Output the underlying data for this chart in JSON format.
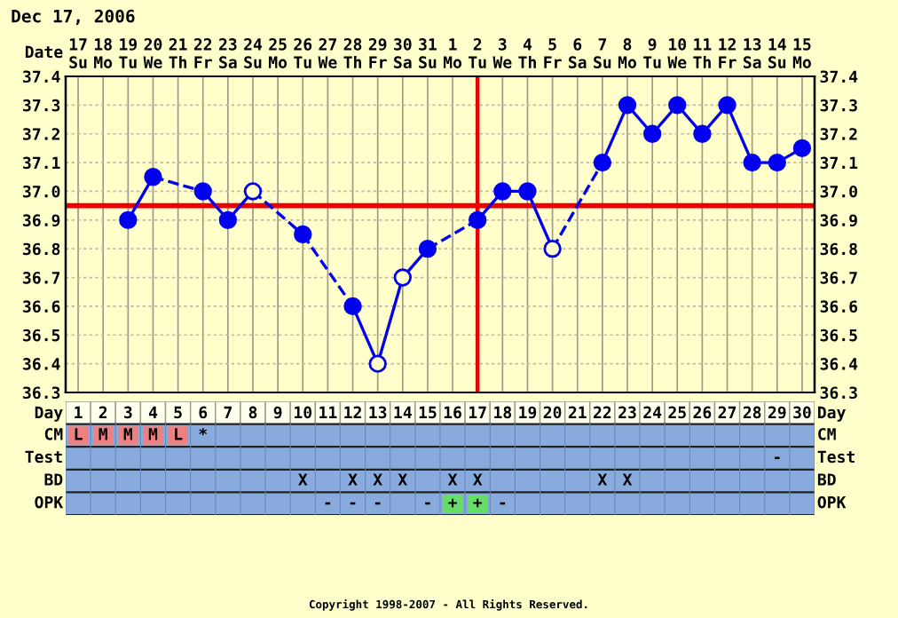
{
  "chart_data": [
    {
      "type": "line",
      "title": "Dec 17, 2006",
      "xlabel": "Day",
      "x2label": "Date",
      "categories": [
        "1",
        "2",
        "3",
        "4",
        "5",
        "6",
        "7",
        "8",
        "9",
        "10",
        "11",
        "12",
        "13",
        "14",
        "15",
        "16",
        "17",
        "18",
        "19",
        "20",
        "21",
        "22",
        "23",
        "24",
        "25",
        "26",
        "27",
        "28",
        "29",
        "30"
      ],
      "x2lim": [
        "2006-12-16T12:00",
        "2007-01-15T12:00"
      ],
      "x2ticks": [
        {
          "value": "2006-12-17",
          "label": "17\nSu"
        },
        {
          "value": "2006-12-18",
          "label": "18\nMo"
        },
        {
          "value": "2006-12-19",
          "label": "19\nTu"
        },
        {
          "value": "2006-12-20",
          "label": "20\nWe"
        },
        {
          "value": "2006-12-21",
          "label": "21\nTh"
        },
        {
          "value": "2006-12-22",
          "label": "22\nFr"
        },
        {
          "value": "2006-12-23",
          "label": "23\nSa"
        },
        {
          "value": "2006-12-24",
          "label": "24\nSu"
        },
        {
          "value": "2006-12-25",
          "label": "25\nMo"
        },
        {
          "value": "2006-12-26",
          "label": "26\nTu"
        },
        {
          "value": "2006-12-27",
          "label": "27\nWe"
        },
        {
          "value": "2006-12-28",
          "label": "28\nTh"
        },
        {
          "value": "2006-12-29",
          "label": "29\nFr"
        },
        {
          "value": "2006-12-30",
          "label": "30\nSa"
        },
        {
          "value": "2006-12-31",
          "label": "31\nSu"
        },
        {
          "value": "2007-01-01",
          "label": "1\nMo"
        },
        {
          "value": "2007-01-02",
          "label": "2\nTu"
        },
        {
          "value": "2007-01-03",
          "label": "3\nWe"
        },
        {
          "value": "2007-01-04",
          "label": "4\nTh"
        },
        {
          "value": "2007-01-05",
          "label": "5\nFr"
        },
        {
          "value": "2007-01-06",
          "label": "6\nSa"
        },
        {
          "value": "2007-01-07",
          "label": "7\nSu"
        },
        {
          "value": "2007-01-08",
          "label": "8\nMo"
        },
        {
          "value": "2007-01-09",
          "label": "9\nTu"
        },
        {
          "value": "2007-01-10",
          "label": "10\nWe"
        },
        {
          "value": "2007-01-11",
          "label": "11\nTh"
        },
        {
          "value": "2007-01-12",
          "label": "12\nFr"
        },
        {
          "value": "2007-01-13",
          "label": "13\nSa"
        },
        {
          "value": "2007-01-14",
          "label": "14\nSu"
        },
        {
          "value": "2007-01-15",
          "label": "15\nMo"
        }
      ],
      "series": [
        {
          "type": "line",
          "color": "#0000ee",
          "line_style": "solid",
          "values": [
            null,
            null,
            36.9,
            37.05,
            null,
            37.0,
            36.9,
            37.0,
            null,
            36.85,
            null,
            36.6,
            36.4,
            36.7,
            36.8,
            null,
            36.9,
            37.0,
            37.0,
            36.8,
            null,
            37.1,
            37.3,
            37.2,
            37.3,
            37.2,
            37.3,
            37.1,
            37.1,
            37.15
          ]
        },
        {
          "type": "scatter",
          "color": "#0000ee",
          "marker": "circle",
          "values": [
            null,
            null,
            36.9,
            37.05,
            null,
            37.0,
            36.9,
            null,
            null,
            36.85,
            null,
            36.6,
            null,
            null,
            36.8,
            null,
            36.9,
            37.0,
            37.0,
            null,
            null,
            37.1,
            37.3,
            37.2,
            37.3,
            37.2,
            37.3,
            37.1,
            37.1,
            37.15
          ]
        },
        {
          "type": "scatter",
          "color": "#0000ee",
          "marker": "circle",
          "colors": [
            null,
            null,
            null,
            null,
            null,
            null,
            null,
            "#ffffcc",
            null,
            null,
            null,
            null,
            "#ffffcc",
            "#ffffcc",
            null,
            null,
            null,
            null,
            null,
            "#ffffcc",
            null,
            null,
            null,
            null,
            null,
            null,
            null,
            null,
            null,
            null
          ],
          "values": [
            null,
            null,
            null,
            null,
            null,
            null,
            null,
            37.0,
            null,
            null,
            null,
            null,
            36.4,
            36.7,
            null,
            null,
            null,
            null,
            null,
            36.8,
            null,
            null,
            null,
            null,
            null,
            null,
            null,
            null,
            null,
            null
          ]
        }
      ],
      "ylim": [
        36.3,
        37.4
      ],
      "yticks": [
        {
          "value": 36.3,
          "label": "36.3"
        },
        {
          "value": 36.4,
          "label": "36.4"
        },
        {
          "value": 36.5,
          "label": "36.5"
        },
        {
          "value": 36.6,
          "label": "36.6"
        },
        {
          "value": 36.7,
          "label": "36.7"
        },
        {
          "value": 36.8,
          "label": "36.8"
        },
        {
          "value": 36.9,
          "label": "36.9"
        },
        {
          "value": 37.0,
          "label": "37.0"
        },
        {
          "value": 37.1,
          "label": "37.1"
        },
        {
          "value": 37.2,
          "label": "37.2"
        },
        {
          "value": 37.3,
          "label": "37.3"
        },
        {
          "value": 37.4,
          "label": "37.4"
        }
      ],
      "y2lim": [
        36.3,
        37.4
      ],
      "y2ticks": [
        {
          "value": 36.3,
          "label": "36.3"
        },
        {
          "value": 36.4,
          "label": "36.4"
        },
        {
          "value": 36.5,
          "label": "36.5"
        },
        {
          "value": 36.6,
          "label": "36.6"
        },
        {
          "value": 36.7,
          "label": "36.7"
        },
        {
          "value": 36.8,
          "label": "36.8"
        },
        {
          "value": 36.9,
          "label": "36.9"
        },
        {
          "value": 37.0,
          "label": "37.0"
        },
        {
          "value": 37.1,
          "label": "37.1"
        },
        {
          "value": 37.2,
          "label": "37.2"
        },
        {
          "value": 37.3,
          "label": "37.3"
        },
        {
          "value": 37.4,
          "label": "37.4"
        }
      ],
      "grid": true,
      "ref_lines": [
        {
          "axis": "y",
          "value": 36.95,
          "color": "#ee0000"
        },
        {
          "axis": "x",
          "value": "17",
          "color": "#ee0000"
        }
      ],
      "annotations": [
        "Copyright 1998-2007 - All Rights Reserved."
      ]
    },
    {
      "type": "other",
      "y_categories": [
        "CM",
        "Test",
        "BD",
        "OPK"
      ],
      "y2_categories": [
        "CM",
        "Test",
        "BD",
        "OPK"
      ],
      "cell_labels": [
        [
          "L",
          "M",
          "M",
          "M",
          "L",
          "*",
          null,
          null,
          null,
          null,
          null,
          null,
          null,
          null,
          null,
          null,
          null,
          null,
          null,
          null,
          null,
          null,
          null,
          null,
          null,
          null,
          null,
          null,
          null,
          null
        ],
        [
          null,
          null,
          null,
          null,
          null,
          null,
          null,
          null,
          null,
          null,
          null,
          null,
          null,
          null,
          null,
          null,
          null,
          null,
          null,
          null,
          null,
          null,
          null,
          null,
          null,
          null,
          null,
          null,
          "-",
          null
        ],
        [
          null,
          null,
          null,
          null,
          null,
          null,
          null,
          null,
          null,
          "X",
          null,
          "X",
          "X",
          "X",
          null,
          "X",
          "X",
          null,
          null,
          null,
          null,
          "X",
          "X",
          null,
          null,
          null,
          null,
          null,
          null,
          null
        ],
        [
          null,
          null,
          null,
          null,
          null,
          null,
          null,
          null,
          null,
          null,
          "-",
          "-",
          "-",
          null,
          "-",
          "+",
          "+",
          "-",
          null,
          null,
          null,
          null,
          null,
          null,
          null,
          null,
          null,
          null,
          null,
          null
        ]
      ],
      "colors": [
        [
          "#ee8080",
          "#ee8080",
          "#ee8080",
          "#ee8080",
          "#ee8080",
          null,
          null,
          null,
          null,
          null,
          null,
          null,
          null,
          null,
          null,
          null,
          null,
          null,
          null,
          null,
          null,
          null,
          null,
          null,
          null,
          null,
          null,
          null,
          null,
          null
        ],
        [
          null,
          null,
          null,
          null,
          null,
          null,
          null,
          null,
          null,
          null,
          null,
          null,
          null,
          null,
          null,
          null,
          null,
          null,
          null,
          null,
          null,
          null,
          null,
          null,
          null,
          null,
          null,
          null,
          null,
          null
        ],
        [
          null,
          null,
          null,
          null,
          null,
          null,
          null,
          null,
          null,
          null,
          null,
          null,
          null,
          null,
          null,
          null,
          null,
          null,
          null,
          null,
          null,
          null,
          null,
          null,
          null,
          null,
          null,
          null,
          null,
          null
        ],
        [
          null,
          null,
          null,
          null,
          null,
          null,
          null,
          null,
          null,
          null,
          null,
          null,
          null,
          null,
          null,
          "#66dd66",
          "#66dd66",
          null,
          null,
          null,
          null,
          null,
          null,
          null,
          null,
          null,
          null,
          null,
          null,
          null
        ]
      ],
      "color": "#88aadd"
    }
  ]
}
